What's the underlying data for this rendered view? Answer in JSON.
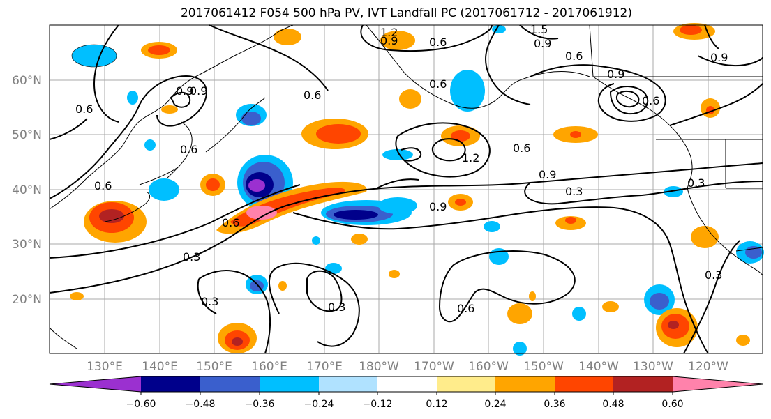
{
  "title": "2017061412 F054 500 hPa PV, IVT Landfall PC (2017061712 - 2017061912)",
  "map": {
    "lat_ticks": [
      "60°N",
      "50°N",
      "40°N",
      "30°N",
      "20°N"
    ],
    "lon_ticks": [
      "130°E",
      "140°E",
      "150°E",
      "160°E",
      "170°E",
      "180°W",
      "170°W",
      "160°W",
      "150°W",
      "140°W",
      "130°W",
      "120°W"
    ],
    "contour_labels": [
      "1.2",
      "1.5",
      "0.9",
      "0.9",
      "0.6",
      "0.6",
      "0.9",
      "0.6",
      "0.6",
      "0.6",
      "0.9",
      "0.9",
      "0.6",
      "0.6",
      "0.6",
      "1.2",
      "0.6",
      "0.9",
      "0.3",
      "0.9",
      "0.3",
      "0.6",
      "0.3",
      "0.3",
      "0.3",
      "0.6",
      "0.3",
      "0.9"
    ]
  },
  "colorbar": {
    "tick_labels": [
      "−0.60",
      "−0.48",
      "−0.36",
      "−0.24",
      "−0.12",
      "0.12",
      "0.24",
      "0.36",
      "0.48",
      "0.60"
    ],
    "colors": [
      "#9b30d0",
      "#00008b",
      "#3a5fcd",
      "#00bfff",
      "#b0e2ff",
      "#ffffff",
      "#ffec8b",
      "#ffa500",
      "#ff4500",
      "#b22222",
      "#ff82ab"
    ]
  }
}
